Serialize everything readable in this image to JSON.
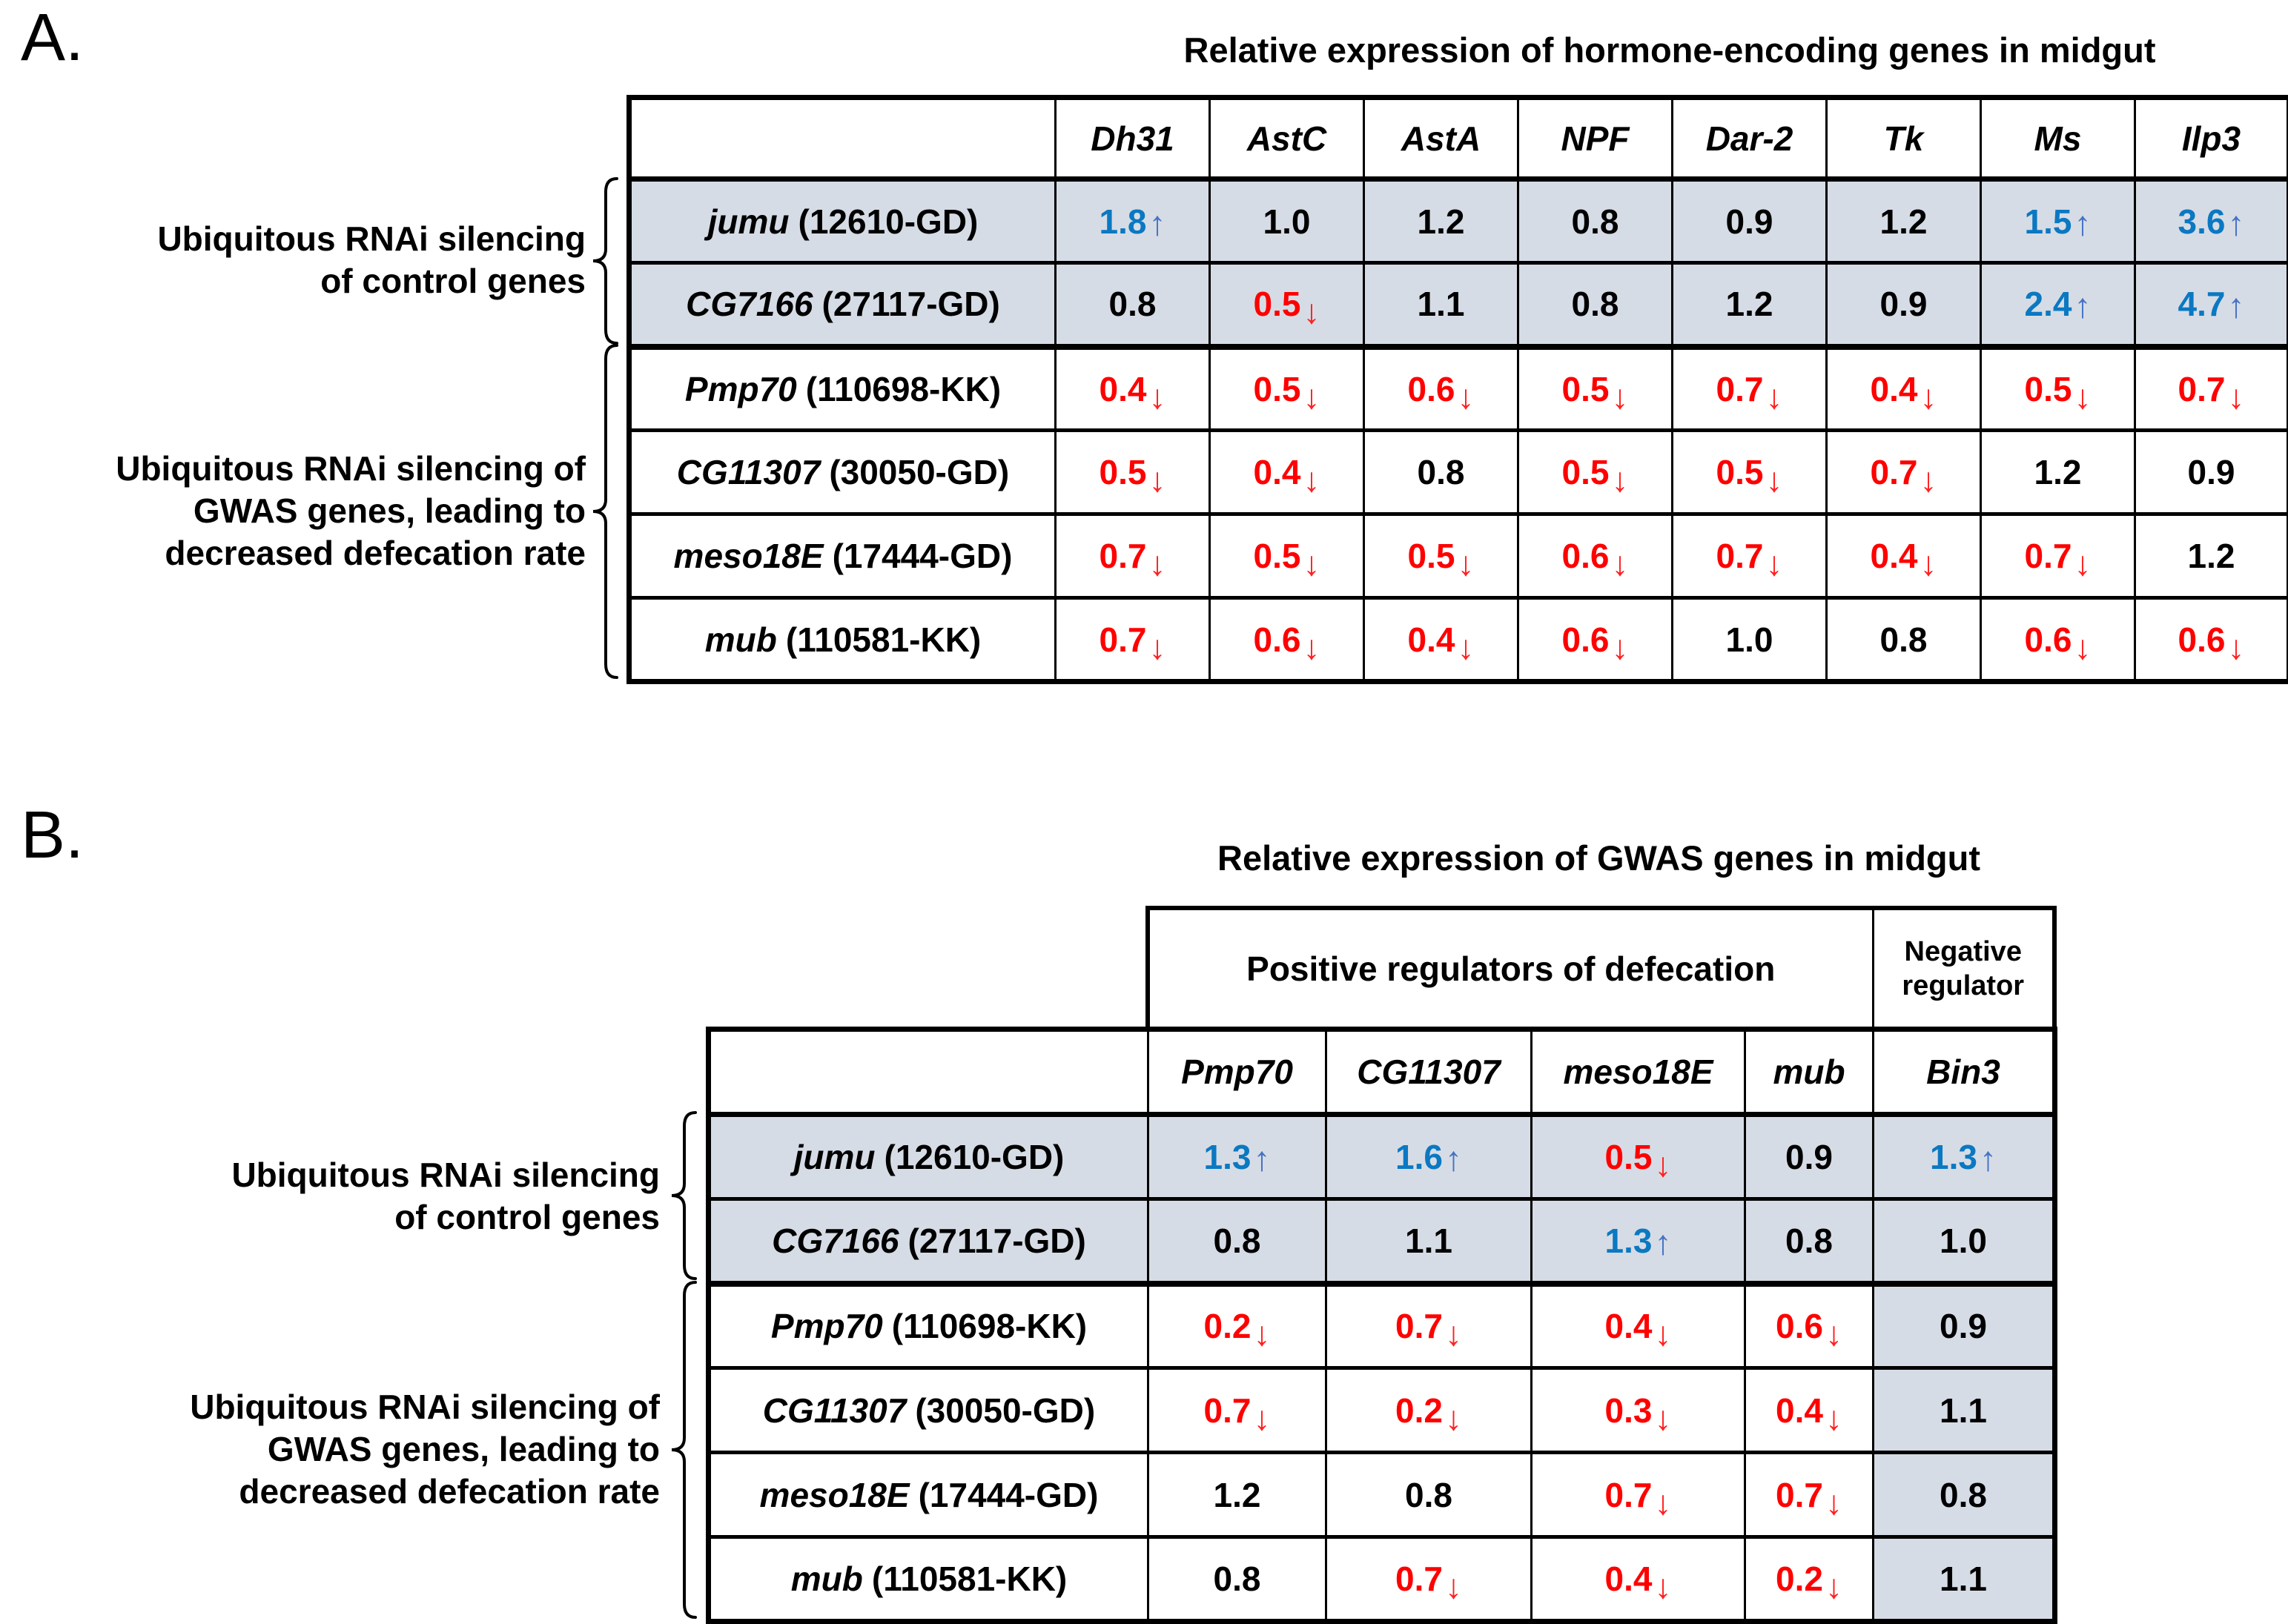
{
  "colors": {
    "up_value": "#0B78C2",
    "up_arrow": "#4472C4",
    "down_value": "#FF0000",
    "down_arrow": "#FF2020",
    "neutral_value": "#000000",
    "row_shade": "#D6DCE5",
    "table_border": "#000000"
  },
  "panelA": {
    "label": "A.",
    "title": "Relative expression of hormone-encoding genes in midgut",
    "columns": [
      "Dh31",
      "AstC",
      "AstA",
      "NPF",
      "Dar-2",
      "Tk",
      "Ms",
      "Ilp3"
    ],
    "rows": [
      {
        "gene": "jumu",
        "id": "(12610-GD)",
        "values": [
          "1.8↑",
          "1.0",
          "1.2",
          "0.8",
          "0.9",
          "1.2",
          "1.5↑",
          "3.6↑"
        ]
      },
      {
        "gene": "CG7166",
        "id": "(27117-GD)",
        "values": [
          "0.8",
          "0.5↓",
          "1.1",
          "0.8",
          "1.2",
          "0.9",
          "2.4↑",
          "4.7↑"
        ]
      },
      {
        "gene": "Pmp70",
        "id": "(110698-KK)",
        "values": [
          "0.4↓",
          "0.5↓",
          "0.6↓",
          "0.5↓",
          "0.7↓",
          "0.4↓",
          "0.5↓",
          "0.7↓"
        ]
      },
      {
        "gene": "CG11307",
        "id": "(30050-GD)",
        "values": [
          "0.5↓",
          "0.4↓",
          "0.8",
          "0.5↓",
          "0.5↓",
          "0.7↓",
          "1.2",
          "0.9"
        ]
      },
      {
        "gene": "meso18E",
        "id": "(17444-GD)",
        "values": [
          "0.7↓",
          "0.5↓",
          "0.5↓",
          "0.6↓",
          "0.7↓",
          "0.4↓",
          "0.7↓",
          "1.2"
        ]
      },
      {
        "gene": "mub",
        "id": "(110581-KK)",
        "values": [
          "0.7↓",
          "0.6↓",
          "0.4↓",
          "0.6↓",
          "1.0",
          "0.8",
          "0.6↓",
          "0.6↓"
        ]
      }
    ],
    "groups": [
      {
        "lines": [
          "Ubiquitous RNAi silencing",
          "of control genes"
        ]
      },
      {
        "lines": [
          "Ubiquitous RNAi silencing of",
          "GWAS genes, leading to",
          "decreased defecation rate"
        ]
      }
    ]
  },
  "panelB": {
    "label": "B.",
    "title": "Relative expression of GWAS genes in midgut",
    "group_headers": [
      "Positive regulators of defecation",
      "Negative regulator"
    ],
    "columns": [
      "Pmp70",
      "CG11307",
      "meso18E",
      "mub",
      "Bin3"
    ],
    "rows": [
      {
        "gene": "jumu",
        "id": "(12610-GD)",
        "values": [
          "1.3↑",
          "1.6↑",
          "0.5↓",
          "0.9",
          "1.3↑"
        ]
      },
      {
        "gene": "CG7166",
        "id": "(27117-GD)",
        "values": [
          "0.8",
          "1.1",
          "1.3↑",
          "0.8",
          "1.0"
        ]
      },
      {
        "gene": "Pmp70",
        "id": "(110698-KK)",
        "values": [
          "0.2↓",
          "0.7↓",
          "0.4↓",
          "0.6↓",
          "0.9"
        ]
      },
      {
        "gene": "CG11307",
        "id": "(30050-GD)",
        "values": [
          "0.7↓",
          "0.2↓",
          "0.3↓",
          "0.4↓",
          "1.1"
        ]
      },
      {
        "gene": "meso18E",
        "id": "(17444-GD)",
        "values": [
          "1.2",
          "0.8",
          "0.7↓",
          "0.7↓",
          "0.8"
        ]
      },
      {
        "gene": "mub",
        "id": "(110581-KK)",
        "values": [
          "0.8",
          "0.7↓",
          "0.4↓",
          "0.2↓",
          "1.1"
        ]
      }
    ],
    "groups": [
      {
        "lines": [
          "Ubiquitous RNAi silencing",
          "of control genes"
        ]
      },
      {
        "lines": [
          "Ubiquitous RNAi silencing of",
          "GWAS genes, leading to",
          "decreased defecation rate"
        ]
      }
    ]
  }
}
